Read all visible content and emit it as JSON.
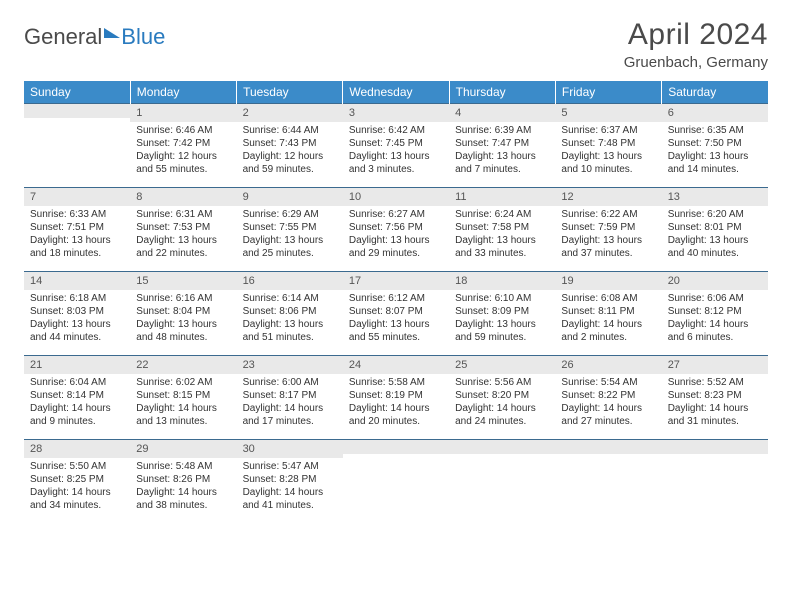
{
  "brand": {
    "part1": "General",
    "part2": "Blue"
  },
  "title": "April 2024",
  "location": "Gruenbach, Germany",
  "colors": {
    "header_bg": "#3b8bc9",
    "header_text": "#ffffff",
    "daynum_bg": "#e9e9e9",
    "border": "#3b6a8f",
    "text": "#333333",
    "title_text": "#4a4a4a"
  },
  "day_headers": [
    "Sunday",
    "Monday",
    "Tuesday",
    "Wednesday",
    "Thursday",
    "Friday",
    "Saturday"
  ],
  "weeks": [
    [
      {
        "n": "",
        "sr": "",
        "ss": "",
        "d1": "",
        "d2": ""
      },
      {
        "n": "1",
        "sr": "Sunrise: 6:46 AM",
        "ss": "Sunset: 7:42 PM",
        "d1": "Daylight: 12 hours",
        "d2": "and 55 minutes."
      },
      {
        "n": "2",
        "sr": "Sunrise: 6:44 AM",
        "ss": "Sunset: 7:43 PM",
        "d1": "Daylight: 12 hours",
        "d2": "and 59 minutes."
      },
      {
        "n": "3",
        "sr": "Sunrise: 6:42 AM",
        "ss": "Sunset: 7:45 PM",
        "d1": "Daylight: 13 hours",
        "d2": "and 3 minutes."
      },
      {
        "n": "4",
        "sr": "Sunrise: 6:39 AM",
        "ss": "Sunset: 7:47 PM",
        "d1": "Daylight: 13 hours",
        "d2": "and 7 minutes."
      },
      {
        "n": "5",
        "sr": "Sunrise: 6:37 AM",
        "ss": "Sunset: 7:48 PM",
        "d1": "Daylight: 13 hours",
        "d2": "and 10 minutes."
      },
      {
        "n": "6",
        "sr": "Sunrise: 6:35 AM",
        "ss": "Sunset: 7:50 PM",
        "d1": "Daylight: 13 hours",
        "d2": "and 14 minutes."
      }
    ],
    [
      {
        "n": "7",
        "sr": "Sunrise: 6:33 AM",
        "ss": "Sunset: 7:51 PM",
        "d1": "Daylight: 13 hours",
        "d2": "and 18 minutes."
      },
      {
        "n": "8",
        "sr": "Sunrise: 6:31 AM",
        "ss": "Sunset: 7:53 PM",
        "d1": "Daylight: 13 hours",
        "d2": "and 22 minutes."
      },
      {
        "n": "9",
        "sr": "Sunrise: 6:29 AM",
        "ss": "Sunset: 7:55 PM",
        "d1": "Daylight: 13 hours",
        "d2": "and 25 minutes."
      },
      {
        "n": "10",
        "sr": "Sunrise: 6:27 AM",
        "ss": "Sunset: 7:56 PM",
        "d1": "Daylight: 13 hours",
        "d2": "and 29 minutes."
      },
      {
        "n": "11",
        "sr": "Sunrise: 6:24 AM",
        "ss": "Sunset: 7:58 PM",
        "d1": "Daylight: 13 hours",
        "d2": "and 33 minutes."
      },
      {
        "n": "12",
        "sr": "Sunrise: 6:22 AM",
        "ss": "Sunset: 7:59 PM",
        "d1": "Daylight: 13 hours",
        "d2": "and 37 minutes."
      },
      {
        "n": "13",
        "sr": "Sunrise: 6:20 AM",
        "ss": "Sunset: 8:01 PM",
        "d1": "Daylight: 13 hours",
        "d2": "and 40 minutes."
      }
    ],
    [
      {
        "n": "14",
        "sr": "Sunrise: 6:18 AM",
        "ss": "Sunset: 8:03 PM",
        "d1": "Daylight: 13 hours",
        "d2": "and 44 minutes."
      },
      {
        "n": "15",
        "sr": "Sunrise: 6:16 AM",
        "ss": "Sunset: 8:04 PM",
        "d1": "Daylight: 13 hours",
        "d2": "and 48 minutes."
      },
      {
        "n": "16",
        "sr": "Sunrise: 6:14 AM",
        "ss": "Sunset: 8:06 PM",
        "d1": "Daylight: 13 hours",
        "d2": "and 51 minutes."
      },
      {
        "n": "17",
        "sr": "Sunrise: 6:12 AM",
        "ss": "Sunset: 8:07 PM",
        "d1": "Daylight: 13 hours",
        "d2": "and 55 minutes."
      },
      {
        "n": "18",
        "sr": "Sunrise: 6:10 AM",
        "ss": "Sunset: 8:09 PM",
        "d1": "Daylight: 13 hours",
        "d2": "and 59 minutes."
      },
      {
        "n": "19",
        "sr": "Sunrise: 6:08 AM",
        "ss": "Sunset: 8:11 PM",
        "d1": "Daylight: 14 hours",
        "d2": "and 2 minutes."
      },
      {
        "n": "20",
        "sr": "Sunrise: 6:06 AM",
        "ss": "Sunset: 8:12 PM",
        "d1": "Daylight: 14 hours",
        "d2": "and 6 minutes."
      }
    ],
    [
      {
        "n": "21",
        "sr": "Sunrise: 6:04 AM",
        "ss": "Sunset: 8:14 PM",
        "d1": "Daylight: 14 hours",
        "d2": "and 9 minutes."
      },
      {
        "n": "22",
        "sr": "Sunrise: 6:02 AM",
        "ss": "Sunset: 8:15 PM",
        "d1": "Daylight: 14 hours",
        "d2": "and 13 minutes."
      },
      {
        "n": "23",
        "sr": "Sunrise: 6:00 AM",
        "ss": "Sunset: 8:17 PM",
        "d1": "Daylight: 14 hours",
        "d2": "and 17 minutes."
      },
      {
        "n": "24",
        "sr": "Sunrise: 5:58 AM",
        "ss": "Sunset: 8:19 PM",
        "d1": "Daylight: 14 hours",
        "d2": "and 20 minutes."
      },
      {
        "n": "25",
        "sr": "Sunrise: 5:56 AM",
        "ss": "Sunset: 8:20 PM",
        "d1": "Daylight: 14 hours",
        "d2": "and 24 minutes."
      },
      {
        "n": "26",
        "sr": "Sunrise: 5:54 AM",
        "ss": "Sunset: 8:22 PM",
        "d1": "Daylight: 14 hours",
        "d2": "and 27 minutes."
      },
      {
        "n": "27",
        "sr": "Sunrise: 5:52 AM",
        "ss": "Sunset: 8:23 PM",
        "d1": "Daylight: 14 hours",
        "d2": "and 31 minutes."
      }
    ],
    [
      {
        "n": "28",
        "sr": "Sunrise: 5:50 AM",
        "ss": "Sunset: 8:25 PM",
        "d1": "Daylight: 14 hours",
        "d2": "and 34 minutes."
      },
      {
        "n": "29",
        "sr": "Sunrise: 5:48 AM",
        "ss": "Sunset: 8:26 PM",
        "d1": "Daylight: 14 hours",
        "d2": "and 38 minutes."
      },
      {
        "n": "30",
        "sr": "Sunrise: 5:47 AM",
        "ss": "Sunset: 8:28 PM",
        "d1": "Daylight: 14 hours",
        "d2": "and 41 minutes."
      },
      {
        "n": "",
        "sr": "",
        "ss": "",
        "d1": "",
        "d2": ""
      },
      {
        "n": "",
        "sr": "",
        "ss": "",
        "d1": "",
        "d2": ""
      },
      {
        "n": "",
        "sr": "",
        "ss": "",
        "d1": "",
        "d2": ""
      },
      {
        "n": "",
        "sr": "",
        "ss": "",
        "d1": "",
        "d2": ""
      }
    ]
  ]
}
